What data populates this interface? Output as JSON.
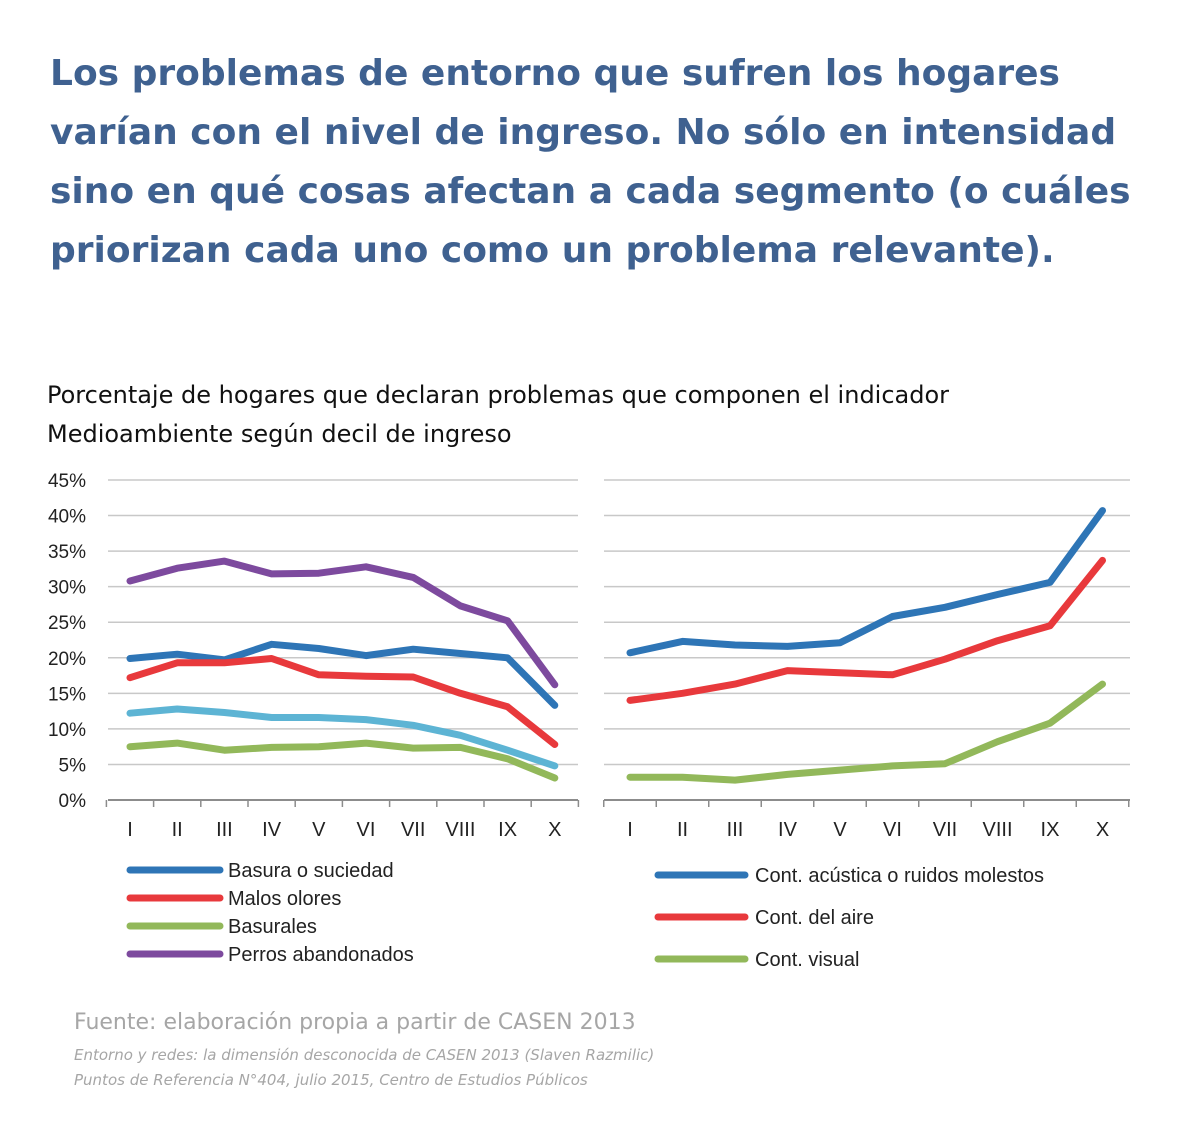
{
  "headline": [
    "Los problemas de entorno que sufren los hogares",
    "varían con el nivel de ingreso. No sólo en intensidad",
    "sino en qué cosas afectan a cada segmento (o cuáles",
    "priorizan cada uno como un problema relevante)."
  ],
  "subtitle": [
    "Porcentaje de hogares que declaran problemas que componen el indicador",
    "Medioambiente según decil de ingreso"
  ],
  "source": {
    "main": "Fuente: elaboración propia a partir de CASEN 2013",
    "line1": "Entorno y redes: la dimensión desconocida de CASEN 2013 (Slaven Razmilic)",
    "line2": "Puntos de Referencia N°404, julio 2015, Centro de Estudios Públicos"
  },
  "chart_data": [
    {
      "type": "line",
      "title": "",
      "xlabel": "",
      "ylabel": "",
      "ylim": [
        0,
        45
      ],
      "yticks": [
        "0%",
        "5%",
        "10%",
        "15%",
        "20%",
        "25%",
        "30%",
        "35%",
        "40%",
        "45%"
      ],
      "categories": [
        "I",
        "II",
        "III",
        "IV",
        "V",
        "VI",
        "VII",
        "VIII",
        "IX",
        "X"
      ],
      "series": [
        {
          "name": "Basura o suciedad",
          "color": "#2e75b6",
          "values": [
            19.9,
            20.5,
            19.7,
            21.9,
            21.3,
            20.3,
            21.2,
            20.6,
            20.0,
            13.3
          ]
        },
        {
          "name": "Malos olores",
          "color": "#e8393c",
          "values": [
            17.2,
            19.3,
            19.3,
            19.9,
            17.6,
            17.4,
            17.3,
            15.0,
            13.1,
            7.8
          ]
        },
        {
          "name": "Basurales",
          "color": "#92b85a",
          "values": [
            7.5,
            8.0,
            7.0,
            7.4,
            7.5,
            8.0,
            7.3,
            7.4,
            5.8,
            3.1
          ]
        },
        {
          "name": "Perros abandonados",
          "color": "#7d4a9e",
          "values": [
            30.8,
            32.6,
            33.6,
            31.8,
            31.9,
            32.8,
            31.3,
            27.3,
            25.2,
            16.2
          ]
        },
        {
          "name": "",
          "color": "#5db4d4",
          "values": [
            12.2,
            12.8,
            12.3,
            11.6,
            11.6,
            11.3,
            10.5,
            9.1,
            7.0,
            4.8
          ]
        }
      ],
      "legend": [
        "Basura o suciedad",
        "Malos olores",
        "Basurales",
        "Perros abandonados"
      ]
    },
    {
      "type": "line",
      "title": "",
      "xlabel": "",
      "ylabel": "",
      "ylim": [
        0,
        45
      ],
      "categories": [
        "I",
        "II",
        "III",
        "IV",
        "V",
        "VI",
        "VII",
        "VIII",
        "IX",
        "X"
      ],
      "series": [
        {
          "name": "Cont. acústica o ruidos molestos",
          "color": "#2e75b6",
          "values": [
            20.7,
            22.3,
            21.8,
            21.6,
            22.1,
            25.8,
            27.1,
            28.9,
            30.6,
            40.7
          ]
        },
        {
          "name": "Cont. del aire",
          "color": "#e8393c",
          "values": [
            14.0,
            15.0,
            16.3,
            18.2,
            17.9,
            17.6,
            19.8,
            22.4,
            24.5,
            33.7
          ]
        },
        {
          "name": "Cont. visual",
          "color": "#92b85a",
          "values": [
            3.2,
            3.2,
            2.8,
            3.6,
            4.2,
            4.8,
            5.1,
            8.2,
            10.8,
            16.3
          ]
        }
      ],
      "legend": [
        "Cont. acústica o ruidos molestos",
        "Cont. del aire",
        "Cont. visual"
      ]
    }
  ]
}
